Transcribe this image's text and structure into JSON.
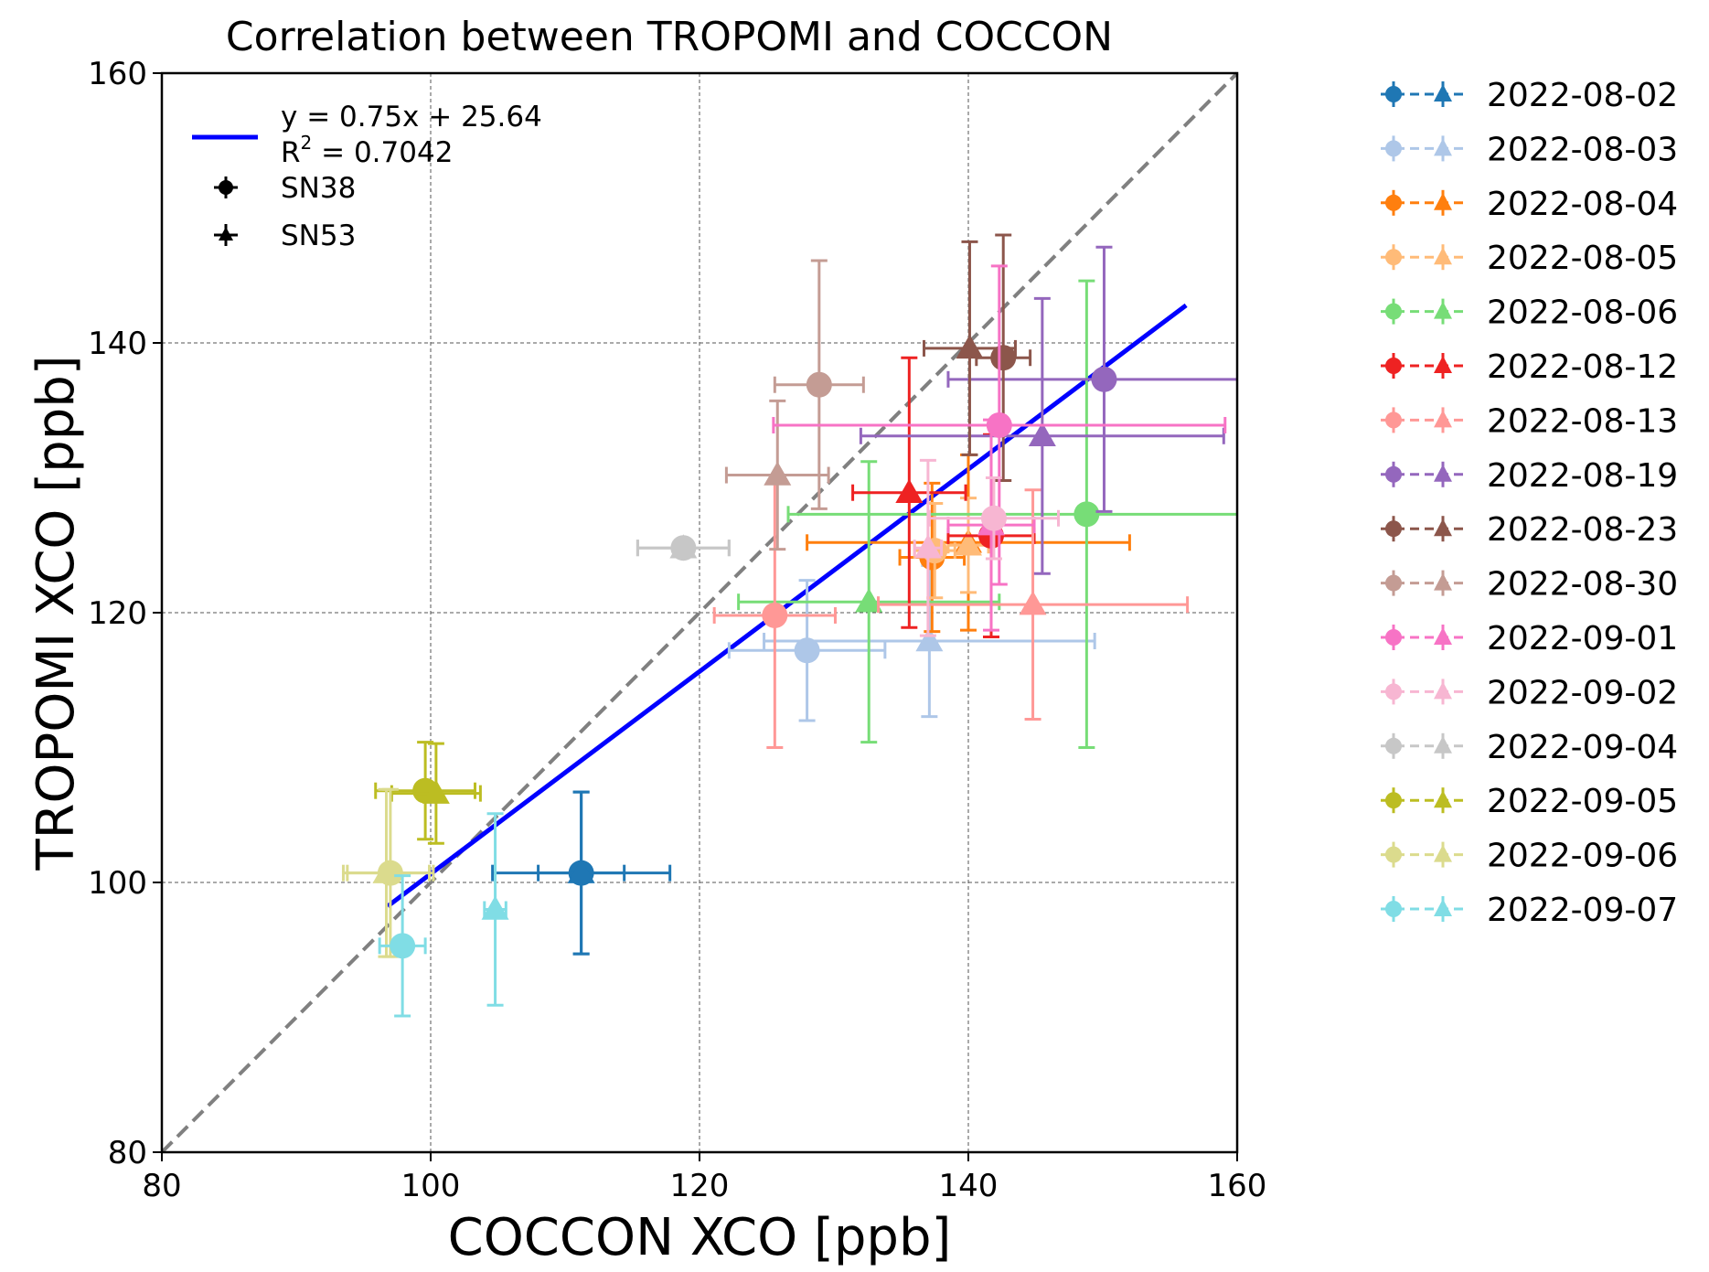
{
  "chart_data": {
    "type": "scatter",
    "title": "Correlation between TROPOMI and COCCON",
    "xlabel": "COCCON XCO [ppb]",
    "ylabel": "TROPOMI XCO [ppb]",
    "xlim": [
      80,
      160
    ],
    "ylim": [
      80,
      160
    ],
    "xticks": [
      "80",
      "100",
      "120",
      "140",
      "160"
    ],
    "yticks": [
      "80",
      "100",
      "120",
      "140",
      "160"
    ],
    "grid": true,
    "fit": {
      "slope": 0.75,
      "intercept": 25.64,
      "x_range": [
        96.8,
        156.2
      ],
      "label": "y = 0.75x + 25.64",
      "r2_label": "R",
      "r2_sup": "2",
      "r2_value": " = 0.7042",
      "color": "#0000ff"
    },
    "identity_line": {
      "color": "#808080"
    },
    "markers": [
      {
        "label": "SN38",
        "shape": "circle"
      },
      {
        "label": "SN53",
        "shape": "triangle"
      }
    ],
    "series": [
      {
        "name": "2022-08-02",
        "color": "#1f77b4",
        "points": [
          {
            "inst": "SN38",
            "x": 111.2,
            "y": 100.7,
            "xerr": 6.6,
            "yerr": 6.0
          },
          {
            "inst": "SN53",
            "x": 111.2,
            "y": 100.7,
            "xerr": 3.2,
            "yerr": 6.0
          }
        ]
      },
      {
        "name": "2022-08-03",
        "color": "#aec7e8",
        "points": [
          {
            "inst": "SN38",
            "x": 128.0,
            "y": 117.2,
            "xerr": 5.8,
            "yerr": 5.2
          },
          {
            "inst": "SN53",
            "x": 137.1,
            "y": 117.9,
            "xerr": 12.3,
            "yerr": 5.6
          }
        ]
      },
      {
        "name": "2022-08-04",
        "color": "#ff7f0e",
        "points": [
          {
            "inst": "SN38",
            "x": 137.3,
            "y": 124.1,
            "xerr": 2.4,
            "yerr": 5.5
          },
          {
            "inst": "SN53",
            "x": 140.0,
            "y": 125.2,
            "xerr": 12.0,
            "yerr": 6.5
          }
        ]
      },
      {
        "name": "2022-08-05",
        "color": "#ffbb78",
        "points": [
          {
            "inst": "SN38",
            "x": 137.5,
            "y": 124.6,
            "xerr": 1.5,
            "yerr": 3.5
          },
          {
            "inst": "SN53",
            "x": 140.0,
            "y": 125.0,
            "xerr": 1.5,
            "yerr": 3.5
          }
        ]
      },
      {
        "name": "2022-08-06",
        "color": "#77dd77",
        "points": [
          {
            "inst": "SN38",
            "x": 148.8,
            "y": 127.3,
            "xerr": 22.2,
            "yerr": 17.3
          },
          {
            "inst": "SN53",
            "x": 132.6,
            "y": 120.8,
            "xerr": 9.7,
            "yerr": 10.4
          }
        ]
      },
      {
        "name": "2022-08-12",
        "color": "#ee2222",
        "points": [
          {
            "inst": "SN38",
            "x": 141.7,
            "y": 125.7,
            "xerr": 3.2,
            "yerr": 7.5
          },
          {
            "inst": "SN53",
            "x": 135.6,
            "y": 128.9,
            "xerr": 4.2,
            "yerr": 10.0
          }
        ]
      },
      {
        "name": "2022-08-13",
        "color": "#ff9896",
        "points": [
          {
            "inst": "SN38",
            "x": 125.6,
            "y": 119.8,
            "xerr": 4.5,
            "yerr": 9.8
          },
          {
            "inst": "SN53",
            "x": 144.8,
            "y": 120.6,
            "xerr": 11.5,
            "yerr": 8.5
          }
        ]
      },
      {
        "name": "2022-08-19",
        "color": "#9467bd",
        "points": [
          {
            "inst": "SN38",
            "x": 150.1,
            "y": 137.3,
            "xerr": 11.6,
            "yerr": 9.8
          },
          {
            "inst": "SN53",
            "x": 145.5,
            "y": 133.1,
            "xerr": 13.5,
            "yerr": 10.2
          }
        ]
      },
      {
        "name": "2022-08-23",
        "color": "#8c564b",
        "points": [
          {
            "inst": "SN38",
            "x": 142.6,
            "y": 138.9,
            "xerr": 2.0,
            "yerr": 9.1
          },
          {
            "inst": "SN53",
            "x": 140.1,
            "y": 139.6,
            "xerr": 3.4,
            "yerr": 7.9
          }
        ]
      },
      {
        "name": "2022-08-30",
        "color": "#c49c94",
        "points": [
          {
            "inst": "SN38",
            "x": 128.9,
            "y": 136.9,
            "xerr": 3.3,
            "yerr": 9.2
          },
          {
            "inst": "SN53",
            "x": 125.8,
            "y": 130.2,
            "xerr": 3.8,
            "yerr": 5.5
          }
        ]
      },
      {
        "name": "2022-09-01",
        "color": "#f773c5",
        "points": [
          {
            "inst": "SN38",
            "x": 142.3,
            "y": 133.9,
            "xerr": 16.8,
            "yerr": 11.8
          },
          {
            "inst": "SN53",
            "x": 141.7,
            "y": 126.5,
            "xerr": 3.2,
            "yerr": 7.8
          }
        ]
      },
      {
        "name": "2022-09-02",
        "color": "#f7b6d2",
        "points": [
          {
            "inst": "SN38",
            "x": 141.9,
            "y": 127.0,
            "xerr": 4.8,
            "yerr": 3.0
          },
          {
            "inst": "SN53",
            "x": 137.0,
            "y": 124.8,
            "xerr": 1.0,
            "yerr": 6.5
          }
        ]
      },
      {
        "name": "2022-09-04",
        "color": "#c7c7c7",
        "points": [
          {
            "inst": "SN38",
            "x": 118.8,
            "y": 124.8,
            "xerr": 3.4,
            "yerr": 0
          },
          {
            "inst": "SN53",
            "x": 118.8,
            "y": 124.8,
            "xerr": 3.4,
            "yerr": 0
          }
        ]
      },
      {
        "name": "2022-09-05",
        "color": "#bcbd22",
        "points": [
          {
            "inst": "SN38",
            "x": 99.6,
            "y": 106.8,
            "xerr": 3.7,
            "yerr": 3.6
          },
          {
            "inst": "SN53",
            "x": 100.4,
            "y": 106.6,
            "xerr": 3.3,
            "yerr": 3.7
          }
        ]
      },
      {
        "name": "2022-09-06",
        "color": "#dbdb8d",
        "points": [
          {
            "inst": "SN38",
            "x": 97.0,
            "y": 100.7,
            "xerr": 3.2,
            "yerr": 6.2
          },
          {
            "inst": "SN53",
            "x": 96.7,
            "y": 100.7,
            "xerr": 3.2,
            "yerr": 6.2
          }
        ]
      },
      {
        "name": "2022-09-07",
        "color": "#80dde5",
        "points": [
          {
            "inst": "SN38",
            "x": 97.9,
            "y": 95.3,
            "xerr": 1.7,
            "yerr": 5.2
          },
          {
            "inst": "SN53",
            "x": 104.8,
            "y": 98.0,
            "xerr": 0.8,
            "yerr": 7.1
          }
        ]
      }
    ]
  }
}
